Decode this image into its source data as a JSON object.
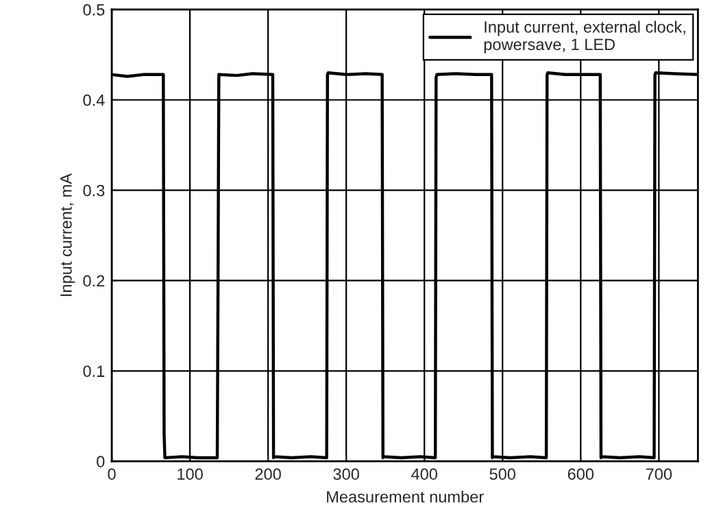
{
  "chart_data": {
    "type": "line",
    "xlabel": "Measurement number",
    "ylabel": "Input current, mA",
    "xlim": [
      0,
      750
    ],
    "ylim": [
      0,
      0.5
    ],
    "xticks": [
      0,
      100,
      200,
      300,
      400,
      500,
      600,
      700
    ],
    "yticks": [
      0,
      0.1,
      0.2,
      0.3,
      0.4,
      0.5
    ],
    "grid": true,
    "legend": "top right",
    "marker": "none",
    "line_style": "solid",
    "series": [
      {
        "name": "Input current, external clock,\npowersave, 1 LED",
        "color": "#000000",
        "x": [
          0,
          20,
          40,
          66,
          67,
          68,
          90,
          110,
          135,
          136,
          137,
          160,
          180,
          206,
          207,
          208,
          230,
          255,
          275,
          276,
          277,
          300,
          325,
          346,
          347,
          348,
          370,
          395,
          414,
          415,
          416,
          440,
          465,
          486,
          487,
          488,
          510,
          535,
          556,
          557,
          558,
          580,
          605,
          625,
          626,
          627,
          650,
          675,
          694,
          695,
          696,
          720,
          750
        ],
        "values": [
          0.428,
          0.426,
          0.428,
          0.428,
          0.03,
          0.004,
          0.005,
          0.004,
          0.004,
          0.2,
          0.428,
          0.427,
          0.429,
          0.428,
          0.004,
          0.005,
          0.004,
          0.005,
          0.004,
          0.428,
          0.43,
          0.428,
          0.429,
          0.428,
          0.004,
          0.005,
          0.004,
          0.005,
          0.004,
          0.425,
          0.428,
          0.429,
          0.428,
          0.428,
          0.004,
          0.005,
          0.004,
          0.005,
          0.004,
          0.428,
          0.43,
          0.428,
          0.428,
          0.428,
          0.004,
          0.005,
          0.004,
          0.005,
          0.004,
          0.428,
          0.43,
          0.429,
          0.428
        ]
      }
    ]
  }
}
